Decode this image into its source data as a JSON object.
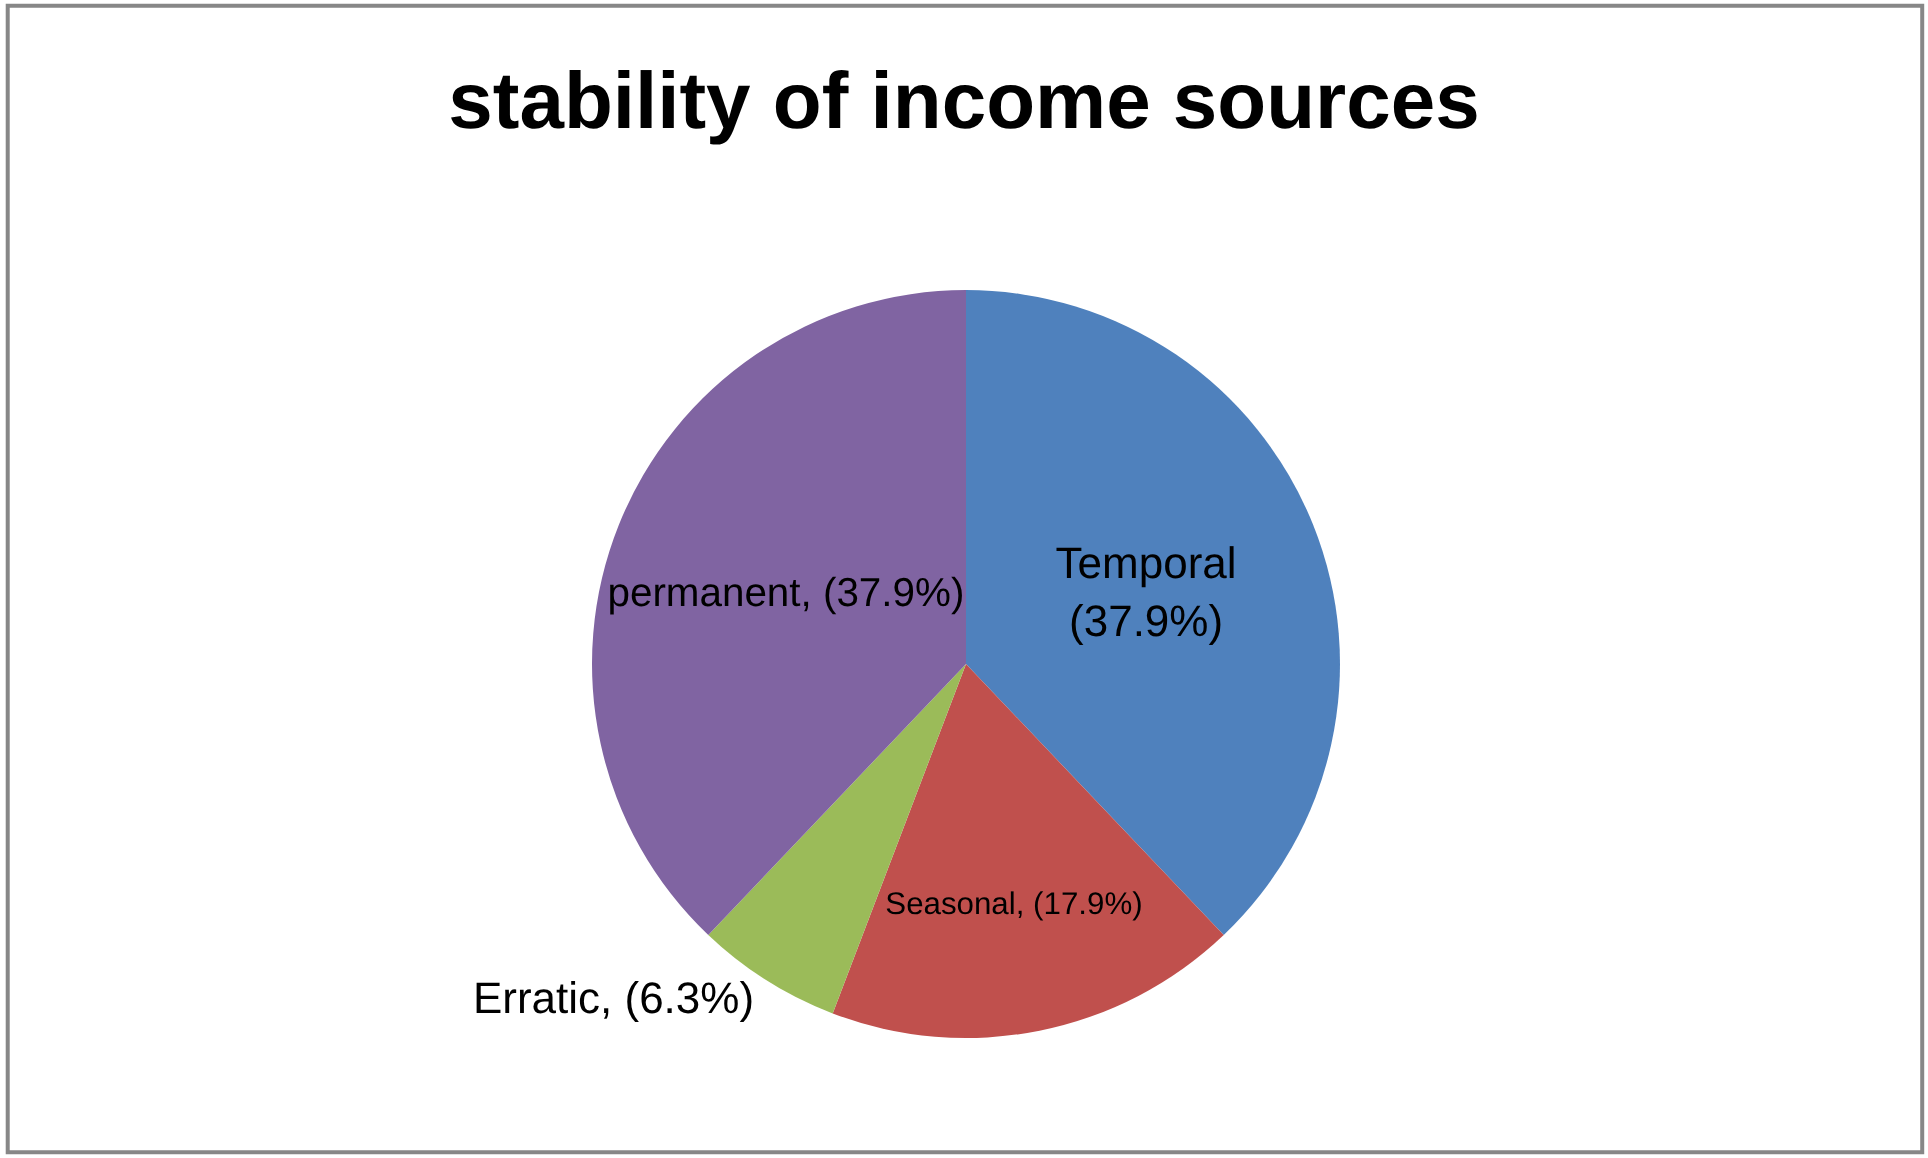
{
  "chart_data": {
    "type": "pie",
    "title": "stability of income sources",
    "categories": [
      "Temporal",
      "Seasonal",
      "Erratic",
      "permanent"
    ],
    "values": [
      37.9,
      17.9,
      6.3,
      37.9
    ],
    "colors": [
      "#4f81bd",
      "#c0504d",
      "#9bbb59",
      "#8064a2"
    ],
    "value_labels": [
      "(37.9%)",
      "(17.9%)",
      "(6.3%)",
      "(37.9%)"
    ],
    "legend": false
  }
}
